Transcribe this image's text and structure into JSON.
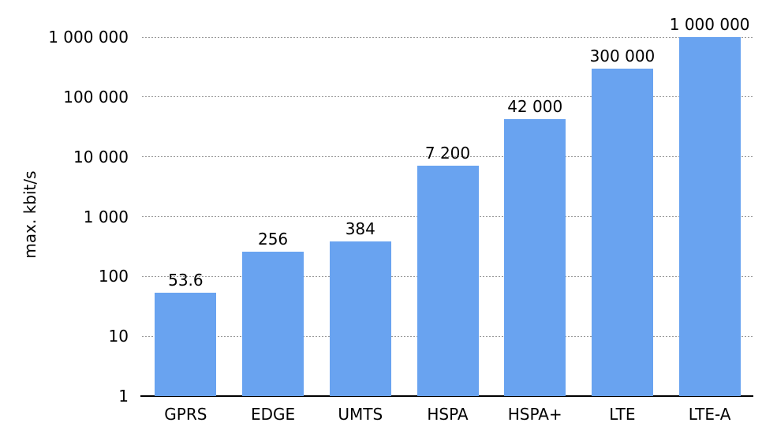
{
  "chart_data": {
    "type": "bar",
    "title": "",
    "xlabel": "",
    "ylabel": "max. kbit/s",
    "categories": [
      "GPRS",
      "EDGE",
      "UMTS",
      "HSPA",
      "HSPA+",
      "LTE",
      "LTE-A"
    ],
    "values": [
      53.6,
      256,
      384,
      7200,
      42000,
      300000,
      1000000
    ],
    "value_labels": [
      "53.6",
      "256",
      "384",
      "7 200",
      "42 000",
      "300 000",
      "1 000 000"
    ],
    "y_scale": "log10",
    "ylim": [
      1,
      1000000
    ],
    "yticks": [
      {
        "value": 1,
        "label": "1"
      },
      {
        "value": 10,
        "label": "10"
      },
      {
        "value": 100,
        "label": "100"
      },
      {
        "value": 1000,
        "label": "1 000"
      },
      {
        "value": 10000,
        "label": "10 000"
      },
      {
        "value": 100000,
        "label": "100 000"
      },
      {
        "value": 1000000,
        "label": "1 000 000"
      }
    ],
    "grid": "horizontal-dotted",
    "legend": "none",
    "colors": {
      "bar": "#69A3F0",
      "gridline": "#999999",
      "axis": "#000000",
      "text": "#000000",
      "background": "#ffffff"
    }
  }
}
